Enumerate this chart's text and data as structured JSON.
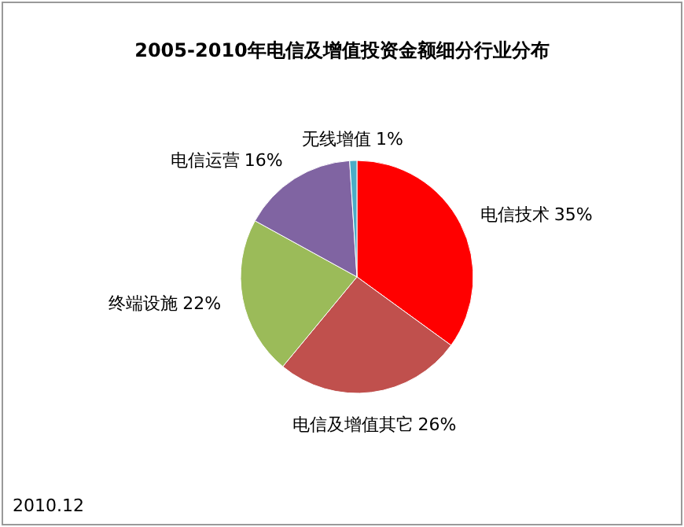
{
  "chart_data": {
    "type": "pie",
    "title": "2005-2010年电信及增值投资金额细分行业分布",
    "categories": [
      "电信技术",
      "电信及增值其它",
      "终端设施",
      "电信运营",
      "无线增值"
    ],
    "values": [
      35,
      26,
      22,
      16,
      1
    ],
    "colors": [
      "#ff0000",
      "#c0504d",
      "#9bbb59",
      "#8064a2",
      "#4bacc6"
    ],
    "value_labels": [
      "35%",
      "26%",
      "22%",
      "16%",
      "1%"
    ],
    "annotations": [
      "2010.12"
    ]
  }
}
